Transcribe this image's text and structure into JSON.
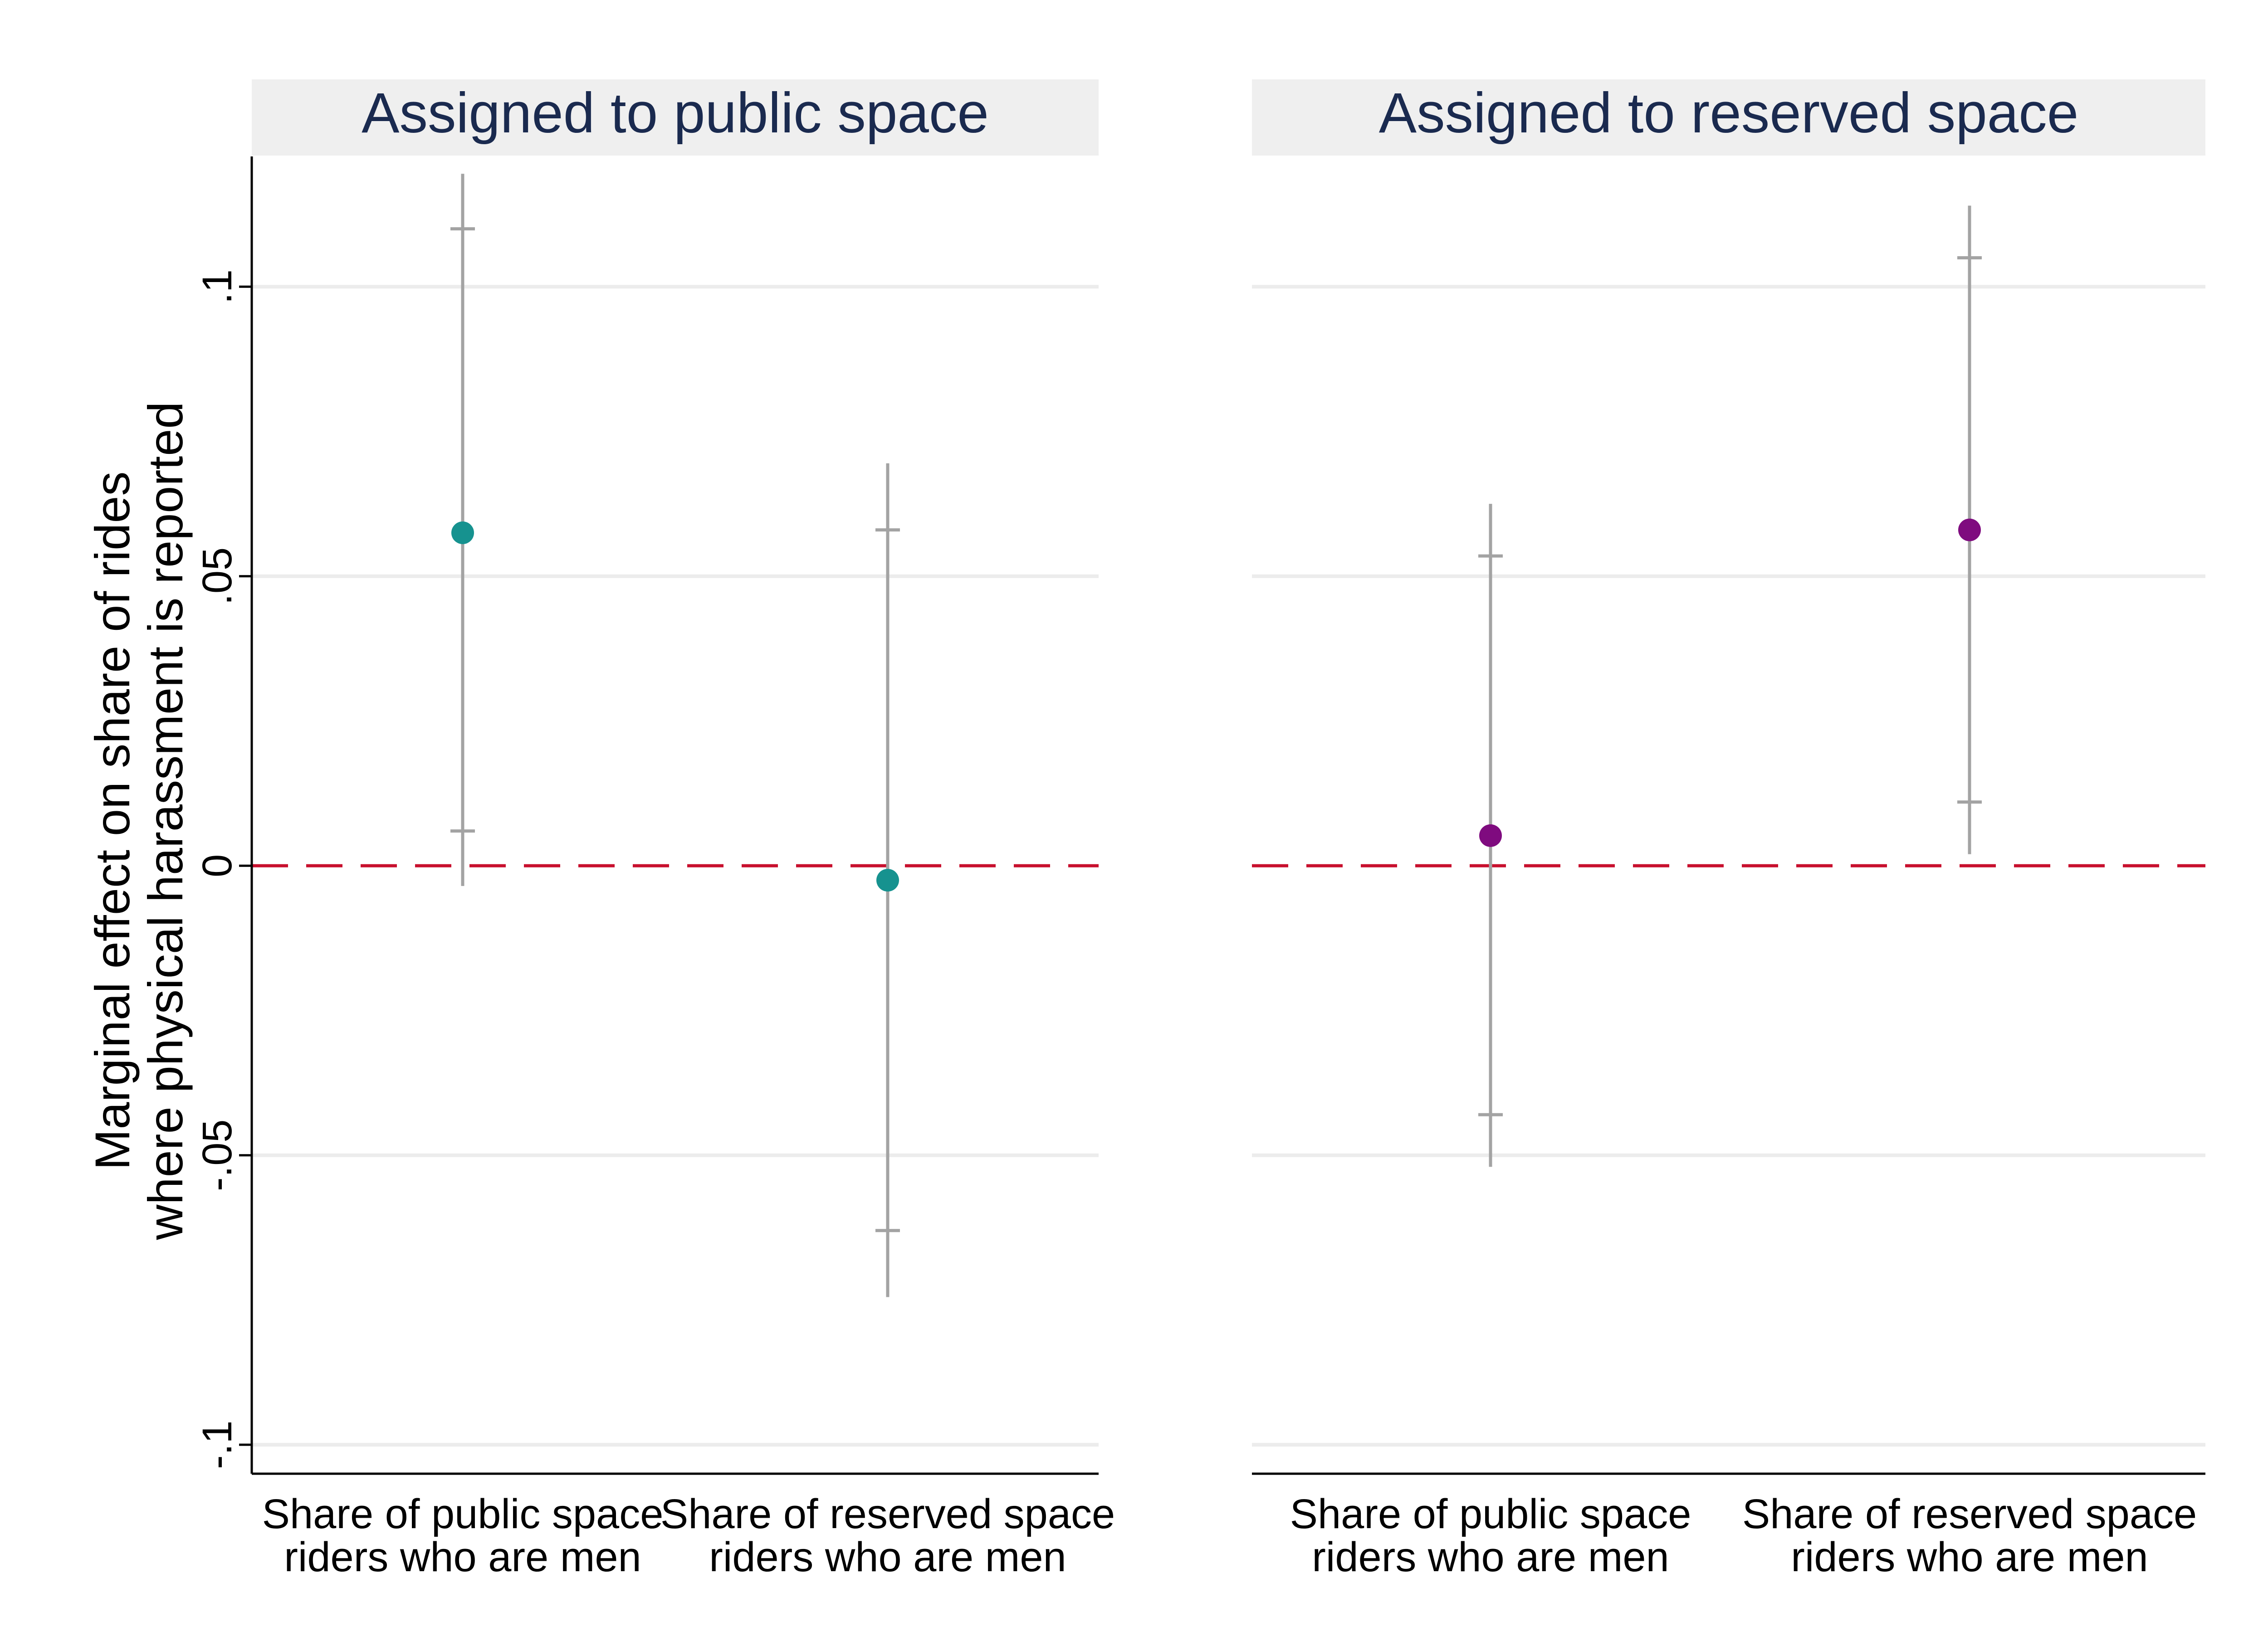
{
  "chart_data": {
    "type": "scatter",
    "subtype": "coefficient plot with confidence intervals",
    "ylabel_lines": [
      "Marginal effect on share of rides",
      "where physical harassment is reported"
    ],
    "y_ticks": [
      {
        "value": 0.1,
        "label": ".1"
      },
      {
        "value": 0.05,
        "label": ".05"
      },
      {
        "value": 0,
        "label": "0"
      },
      {
        "value": -0.05,
        "label": "-.05"
      },
      {
        "value": -0.1,
        "label": "-.1"
      }
    ],
    "ylim": [
      -0.105,
      0.1225
    ],
    "reference_line": {
      "y": 0,
      "style": "dashed",
      "color": "#c8102e"
    },
    "grid": true,
    "colors": {
      "point_public_panel": "#16928f",
      "point_reserved_panel": "#7f0b7f",
      "ci": "#a3a3a3",
      "grid": "#ececec",
      "panel_header_bg": "#efefef",
      "panel_title": "#1a2a4f"
    },
    "panels": [
      {
        "title": "Assigned to public space",
        "categories": [
          [
            "Share of public space",
            "riders who are men"
          ],
          [
            "Share of reserved space",
            "riders who are men"
          ]
        ],
        "points": [
          {
            "estimate": 0.0575,
            "ci90": [
              0.006,
              0.11
            ],
            "ci95": [
              -0.0035,
              0.1195
            ]
          },
          {
            "estimate": -0.0025,
            "ci90": [
              -0.063,
              0.058
            ],
            "ci95": [
              -0.0745,
              0.0695
            ]
          }
        ]
      },
      {
        "title": "Assigned to reserved space",
        "categories": [
          [
            "Share of public space",
            "riders who are men"
          ],
          [
            "Share of reserved space",
            "riders who are men"
          ]
        ],
        "points": [
          {
            "estimate": 0.0052,
            "ci90": [
              -0.043,
              0.0535
            ],
            "ci95": [
              -0.052,
              0.0625
            ]
          },
          {
            "estimate": 0.058,
            "ci90": [
              0.011,
              0.105
            ],
            "ci95": [
              0.002,
              0.114
            ]
          }
        ]
      }
    ]
  }
}
